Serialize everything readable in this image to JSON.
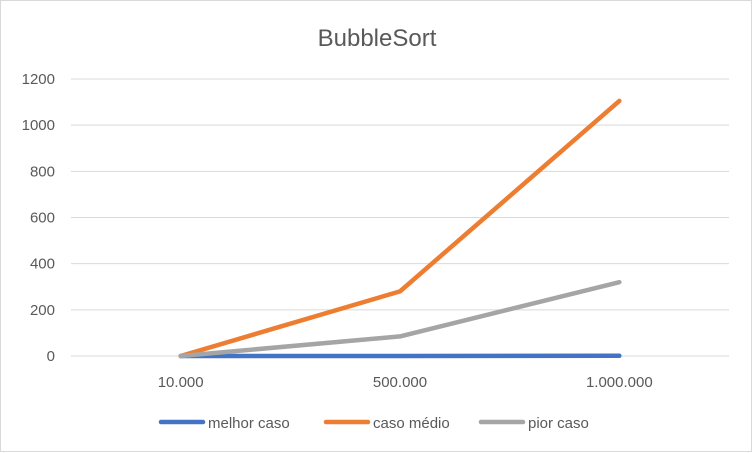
{
  "chart_data": {
    "type": "line",
    "title": "BubbleSort",
    "categories": [
      "10.000",
      "500.000",
      "1.000.000"
    ],
    "series": [
      {
        "name": "melhor caso",
        "values": [
          0,
          0,
          1
        ],
        "color": "#4472C4"
      },
      {
        "name": "caso médio",
        "values": [
          0,
          280,
          1105
        ],
        "color": "#ED7D31"
      },
      {
        "name": "pior caso",
        "values": [
          0,
          85,
          320
        ],
        "color": "#A5A5A5"
      }
    ],
    "ylim": [
      0,
      1200
    ],
    "yticks": [
      "0",
      "200",
      "400",
      "600",
      "800",
      "1000",
      "1200"
    ],
    "grid": true,
    "legend_position": "bottom"
  }
}
